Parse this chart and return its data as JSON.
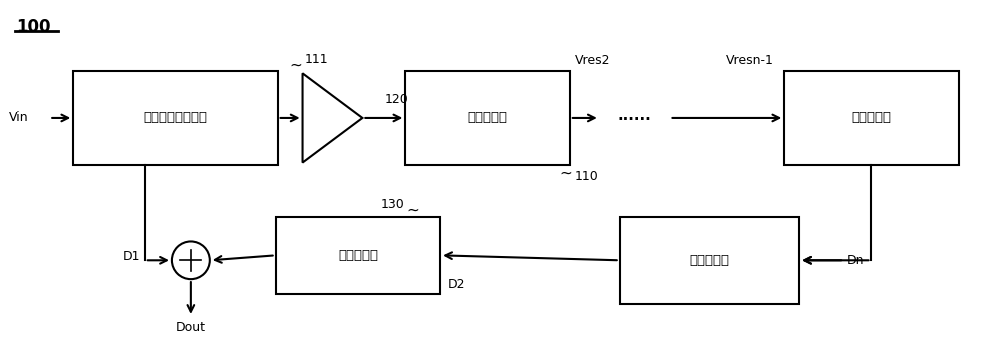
{
  "bg_color": "#ffffff",
  "line_color": "#000000",
  "label_100": "100",
  "label_vin": "Vin",
  "box1_label": "第一级模数转换器",
  "box2_label": "模数转换器",
  "box3_label": "模数转换器",
  "box4_label": "数字滤波器",
  "box5_label": "数字滤波器",
  "label_111": "111",
  "label_120": "120",
  "label_110": "110",
  "label_130": "130",
  "label_vres2": "Vres2",
  "label_vresn1": "Vresn-1",
  "label_d1": "D1",
  "label_d2": "D2",
  "label_dn": "Dn",
  "label_dots": "......",
  "label_dout": "Dout",
  "label_tilde": "~"
}
